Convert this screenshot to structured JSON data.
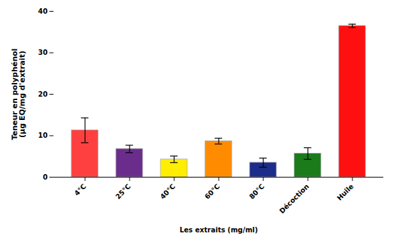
{
  "chart_data": {
    "type": "bar",
    "categories": [
      "4°C",
      "25°C",
      "40°C",
      "60°C",
      "80°C",
      "Décoction",
      "Huile"
    ],
    "values": [
      11.3,
      6.8,
      4.3,
      8.7,
      3.5,
      5.7,
      36.5
    ],
    "errors": [
      3.0,
      0.9,
      0.8,
      0.7,
      1.1,
      1.4,
      0.4
    ],
    "colors": [
      "#FF4040",
      "#6B2D8B",
      "#FFEE00",
      "#FF8C00",
      "#1C2D8A",
      "#1B7B1B",
      "#FF1010"
    ],
    "xlabel": "Les extraits (mg/ml)",
    "ylabel": "Teneur en polyphénol\n(µg EQ/mg d'extrait)",
    "ylim": [
      0,
      40
    ],
    "yticks": [
      0,
      10,
      20,
      30,
      40
    ],
    "grid": false
  }
}
